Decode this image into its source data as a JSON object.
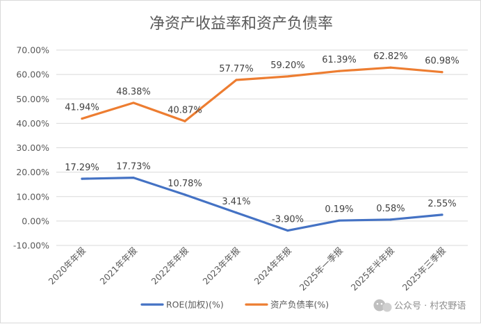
{
  "chart_data": {
    "type": "line",
    "title": "净资产收益率和资产负债率",
    "categories": [
      "2020年年报",
      "2021年年报",
      "2022年年报",
      "2023年年报",
      "2024年年报",
      "2025年一季报",
      "2025年半年报",
      "2025年三季报"
    ],
    "ylim": [
      -10,
      70
    ],
    "yticks": [
      70,
      60,
      50,
      40,
      30,
      20,
      10,
      0,
      -10
    ],
    "ytick_labels": [
      "70.00%",
      "60.00%",
      "50.00%",
      "40.00%",
      "30.00%",
      "20.00%",
      "10.00%",
      "0.00%",
      "-10.00%"
    ],
    "grid": true,
    "legend_position": "bottom",
    "series": [
      {
        "name": "ROE(加权)(%)",
        "color": "#4472c4",
        "values": [
          17.29,
          17.73,
          10.78,
          3.41,
          -3.9,
          0.19,
          0.58,
          2.55
        ],
        "labels": [
          "17.29%",
          "17.73%",
          "10.78%",
          "3.41%",
          "-3.90%",
          "0.19%",
          "0.58%",
          "2.55%"
        ]
      },
      {
        "name": "资产负债率(%)",
        "color": "#ed7d31",
        "values": [
          41.94,
          48.38,
          40.87,
          57.77,
          59.2,
          61.39,
          62.82,
          60.98
        ],
        "labels": [
          "41.94%",
          "48.38%",
          "40.87%",
          "57.77%",
          "59.20%",
          "61.39%",
          "62.82%",
          "60.98%"
        ]
      }
    ]
  },
  "watermark": {
    "text": "公众号 · 村农野语",
    "icon": "wechat-icon"
  }
}
